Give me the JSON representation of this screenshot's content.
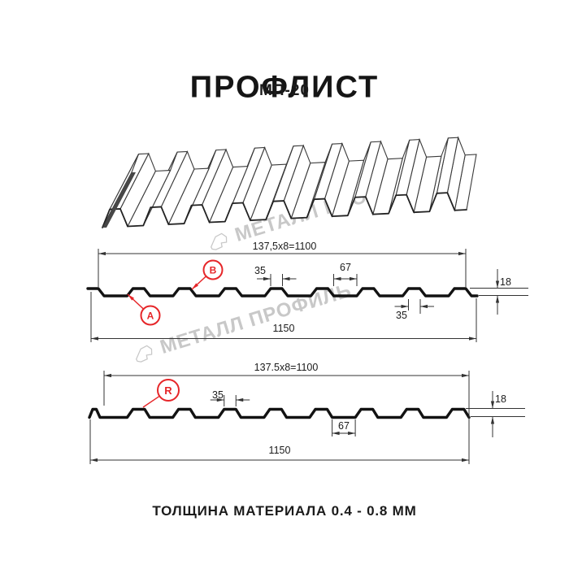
{
  "page": {
    "title": "ПРОФЛИСТ",
    "subtitle": "МП-20",
    "footer_note": "ТОЛЩИНА МАТЕРИАЛА 0.4 - 0.8 ММ"
  },
  "watermark": {
    "brand": "МЕТАЛЛ ПРОФИЛЬ"
  },
  "colors": {
    "accent_red": "#e62629",
    "line_dark": "#1a1a1a",
    "watermark_gray": "#c8c8c8"
  },
  "section_top_view": {
    "module_width_label": "137,5x8=1100",
    "overall_width_label": "1150",
    "crest_top_width_label": "35",
    "valley_width_label": "67",
    "height_label": "18",
    "crest_bottom_width_label": "35",
    "callout_a": "A",
    "callout_b": "B"
  },
  "section_bottom_view": {
    "module_width_label": "137.5x8=1100",
    "overall_width_label": "1150",
    "crest_top_width_label": "35",
    "valley_width_label": "67",
    "height_label": "18",
    "callout_r": "R"
  }
}
